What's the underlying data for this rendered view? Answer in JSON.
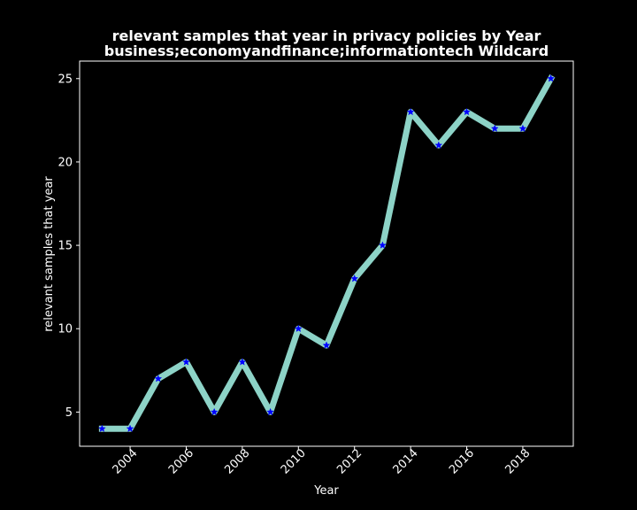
{
  "colors": {
    "background": "#000000",
    "foreground": "#ffffff",
    "line": "#8dd3c7",
    "marker": "#0000ff"
  },
  "chart_data": {
    "type": "line",
    "title_line1": "relevant samples that year in privacy policies by Year",
    "title_line2": "business;economyandfinance;informationtech Wildcard",
    "xlabel": "Year",
    "ylabel": "relevant samples that year",
    "x": [
      2003,
      2004,
      2005,
      2006,
      2007,
      2008,
      2009,
      2010,
      2011,
      2012,
      2013,
      2014,
      2015,
      2016,
      2017,
      2018,
      2019
    ],
    "series": [
      {
        "name": "relevant samples that year",
        "values": [
          4,
          4,
          7,
          8,
          5,
          8,
          5,
          10,
          9,
          13,
          15,
          23,
          21,
          23,
          22,
          22,
          25
        ],
        "marker": "star"
      }
    ],
    "xlim": [
      2002.2,
      2019.8
    ],
    "ylim": [
      2.95,
      26.05
    ],
    "xticks": [
      "2004",
      "2006",
      "2008",
      "2010",
      "2012",
      "2014",
      "2016",
      "2018"
    ],
    "yticks": [
      "5",
      "10",
      "15",
      "20",
      "25"
    ],
    "grid": false,
    "legend": "none"
  }
}
